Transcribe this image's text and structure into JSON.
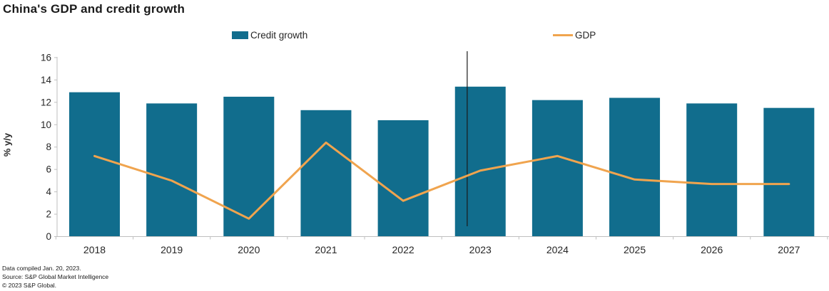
{
  "title": "China's GDP and credit growth",
  "legend": {
    "credit_label": "Credit growth",
    "gdp_label": "GDP"
  },
  "chart_data": {
    "type": "bar",
    "subtype": "bar-and-line combo",
    "categories": [
      "2018",
      "2019",
      "2020",
      "2021",
      "2022",
      "2023",
      "2024",
      "2025",
      "2026",
      "2027"
    ],
    "series": [
      {
        "name": "Credit growth",
        "type": "bar",
        "color": "#116d8d",
        "values": [
          12.9,
          11.9,
          12.5,
          11.3,
          10.4,
          13.4,
          12.2,
          12.4,
          11.9,
          11.5
        ]
      },
      {
        "name": "GDP",
        "type": "line",
        "color": "#f0a44e",
        "values": [
          7.2,
          5.0,
          1.6,
          8.4,
          3.2,
          5.9,
          7.2,
          5.1,
          4.7,
          4.7
        ]
      }
    ],
    "title": "China's GDP and credit growth",
    "xlabel": "",
    "ylabel": "% y/y",
    "ylim": [
      0,
      16
    ],
    "yticks": [
      0,
      2,
      4,
      6,
      8,
      10,
      12,
      14,
      16
    ],
    "grid": false,
    "legend_position": "top",
    "annotations": [
      {
        "type": "vline",
        "between": "actual/forecast",
        "x_category": "2023",
        "x_offset_band": -0.17,
        "color": "#1a1a1a"
      }
    ],
    "axis_color": "#bfbfbf",
    "tick_text_color": "#262626"
  },
  "footer": {
    "line1": "Data compiled Jan. 20, 2023.",
    "line2": "Source: S&P Global Market Intelligence",
    "line3": "© 2023 S&P Global."
  }
}
